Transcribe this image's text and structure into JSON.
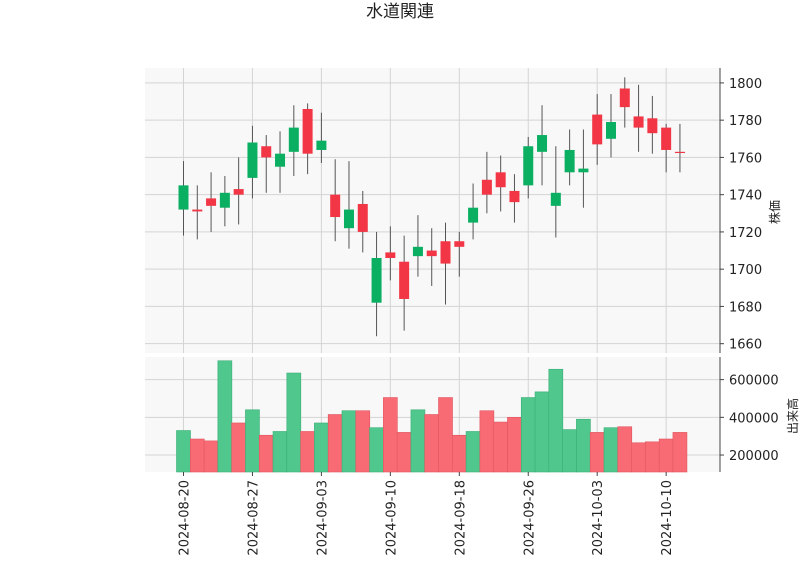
{
  "chart_data": {
    "type": "candlestick",
    "title": "水道関連",
    "price_panel": {
      "ylabel": "株価",
      "ylim": [
        1655,
        1808
      ],
      "yticks": [
        1660,
        1680,
        1700,
        1720,
        1740,
        1760,
        1780,
        1800
      ],
      "grid": true
    },
    "volume_panel": {
      "ylabel": "出来高",
      "ylim": [
        110000,
        720000
      ],
      "yticks": [
        200000,
        400000,
        600000
      ],
      "grid": true
    },
    "x_tick_labels": [
      "2024-08-20",
      "2024-08-27",
      "2024-09-03",
      "2024-09-10",
      "2024-09-18",
      "2024-09-26",
      "2024-10-03",
      "2024-10-10"
    ],
    "x_tick_indices": [
      0,
      5,
      10,
      15,
      20,
      25,
      30,
      35
    ],
    "colors": {
      "up": "#f23645",
      "down": "#0aaf62",
      "up_volume": "#f86b74",
      "down_volume": "#4fc78d",
      "wick": "#555555"
    },
    "candles": [
      {
        "date": "2024-08-20",
        "open": 1745,
        "high": 1758,
        "low": 1718,
        "close": 1732,
        "volume": 330000
      },
      {
        "date": "2024-08-21",
        "open": 1731,
        "high": 1745,
        "low": 1716,
        "close": 1732,
        "volume": 285000
      },
      {
        "date": "2024-08-22",
        "open": 1734,
        "high": 1752,
        "low": 1720,
        "close": 1738,
        "volume": 275000
      },
      {
        "date": "2024-08-23",
        "open": 1741,
        "high": 1750,
        "low": 1723,
        "close": 1733,
        "volume": 700000
      },
      {
        "date": "2024-08-26",
        "open": 1740,
        "high": 1760,
        "low": 1724,
        "close": 1743,
        "volume": 370000
      },
      {
        "date": "2024-08-27",
        "open": 1768,
        "high": 1777,
        "low": 1738,
        "close": 1749,
        "volume": 440000
      },
      {
        "date": "2024-08-28",
        "open": 1760,
        "high": 1772,
        "low": 1741,
        "close": 1766,
        "volume": 305000
      },
      {
        "date": "2024-08-29",
        "open": 1762,
        "high": 1774,
        "low": 1741,
        "close": 1755,
        "volume": 325000
      },
      {
        "date": "2024-08-30",
        "open": 1776,
        "high": 1788,
        "low": 1750,
        "close": 1763,
        "volume": 635000
      },
      {
        "date": "2024-09-02",
        "open": 1762,
        "high": 1789,
        "low": 1751,
        "close": 1786,
        "volume": 325000
      },
      {
        "date": "2024-09-03",
        "open": 1769,
        "high": 1784,
        "low": 1757,
        "close": 1764,
        "volume": 370000
      },
      {
        "date": "2024-09-04",
        "open": 1728,
        "high": 1759,
        "low": 1715,
        "close": 1740,
        "volume": 415000
      },
      {
        "date": "2024-09-05",
        "open": 1732,
        "high": 1758,
        "low": 1711,
        "close": 1722,
        "volume": 435000
      },
      {
        "date": "2024-09-06",
        "open": 1720,
        "high": 1742,
        "low": 1709,
        "close": 1735,
        "volume": 435000
      },
      {
        "date": "2024-09-09",
        "open": 1706,
        "high": 1720,
        "low": 1664,
        "close": 1682,
        "volume": 345000
      },
      {
        "date": "2024-09-10",
        "open": 1706,
        "high": 1723,
        "low": 1694,
        "close": 1709,
        "volume": 505000
      },
      {
        "date": "2024-09-11",
        "open": 1684,
        "high": 1718,
        "low": 1667,
        "close": 1704,
        "volume": 320000
      },
      {
        "date": "2024-09-12",
        "open": 1712,
        "high": 1729,
        "low": 1696,
        "close": 1707,
        "volume": 440000
      },
      {
        "date": "2024-09-13",
        "open": 1707,
        "high": 1722,
        "low": 1691,
        "close": 1710,
        "volume": 415000
      },
      {
        "date": "2024-09-17",
        "open": 1703,
        "high": 1725,
        "low": 1681,
        "close": 1715,
        "volume": 505000
      },
      {
        "date": "2024-09-18",
        "open": 1712,
        "high": 1720,
        "low": 1696,
        "close": 1715,
        "volume": 305000
      },
      {
        "date": "2024-09-19",
        "open": 1733,
        "high": 1746,
        "low": 1716,
        "close": 1725,
        "volume": 325000
      },
      {
        "date": "2024-09-20",
        "open": 1740,
        "high": 1763,
        "low": 1730,
        "close": 1748,
        "volume": 435000
      },
      {
        "date": "2024-09-24",
        "open": 1744,
        "high": 1761,
        "low": 1731,
        "close": 1752,
        "volume": 375000
      },
      {
        "date": "2024-09-25",
        "open": 1736,
        "high": 1751,
        "low": 1725,
        "close": 1742,
        "volume": 400000
      },
      {
        "date": "2024-09-26",
        "open": 1766,
        "high": 1771,
        "low": 1738,
        "close": 1745,
        "volume": 505000
      },
      {
        "date": "2024-09-27",
        "open": 1772,
        "high": 1788,
        "low": 1745,
        "close": 1763,
        "volume": 535000
      },
      {
        "date": "2024-09-30",
        "open": 1741,
        "high": 1766,
        "low": 1717,
        "close": 1734,
        "volume": 655000
      },
      {
        "date": "2024-10-01",
        "open": 1764,
        "high": 1775,
        "low": 1745,
        "close": 1752,
        "volume": 335000
      },
      {
        "date": "2024-10-02",
        "open": 1754,
        "high": 1775,
        "low": 1733,
        "close": 1752,
        "volume": 390000
      },
      {
        "date": "2024-10-03",
        "open": 1767,
        "high": 1794,
        "low": 1756,
        "close": 1783,
        "volume": 320000
      },
      {
        "date": "2024-10-04",
        "open": 1779,
        "high": 1794,
        "low": 1760,
        "close": 1770,
        "volume": 345000
      },
      {
        "date": "2024-10-07",
        "open": 1787,
        "high": 1803,
        "low": 1776,
        "close": 1797,
        "volume": 350000
      },
      {
        "date": "2024-10-08",
        "open": 1776,
        "high": 1799,
        "low": 1763,
        "close": 1782,
        "volume": 265000
      },
      {
        "date": "2024-10-09",
        "open": 1773,
        "high": 1793,
        "low": 1762,
        "close": 1781,
        "volume": 270000
      },
      {
        "date": "2024-10-10",
        "open": 1764,
        "high": 1778,
        "low": 1752,
        "close": 1776,
        "volume": 285000
      },
      {
        "date": "2024-10-11",
        "open": 1763,
        "high": 1778,
        "low": 1752,
        "close": 1763,
        "volume": 320000
      }
    ]
  }
}
